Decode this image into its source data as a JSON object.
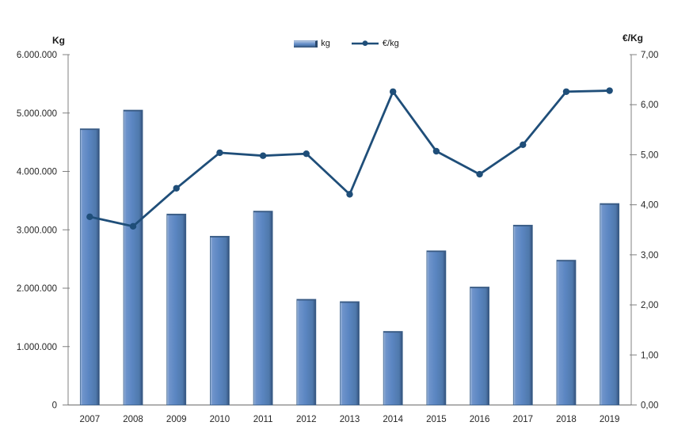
{
  "legend": {
    "bar_label": "kg",
    "line_label": "€/kg"
  },
  "chart_data": {
    "type": "combo bar+line",
    "categories": [
      "2007",
      "2008",
      "2009",
      "2010",
      "2011",
      "2012",
      "2013",
      "2014",
      "2015",
      "2016",
      "2017",
      "2018",
      "2019"
    ],
    "series": [
      {
        "name": "kg",
        "type": "bar",
        "axis": "left",
        "color": "#5b86c2",
        "values": [
          4730000,
          5050000,
          3270000,
          2890000,
          3320000,
          1810000,
          1770000,
          1260000,
          2640000,
          2020000,
          3080000,
          2480000,
          3450000
        ]
      },
      {
        "name": "€/kg",
        "type": "line",
        "axis": "right",
        "color": "#1f4e79",
        "values": [
          3.76,
          3.57,
          4.33,
          5.04,
          4.98,
          5.02,
          4.21,
          6.26,
          5.07,
          4.61,
          5.2,
          6.26,
          6.28
        ]
      }
    ],
    "left_axis": {
      "label": "Kg",
      "min": 0,
      "max": 6000000,
      "step": 1000000,
      "tick_labels": [
        "0",
        "1.000.000",
        "2.000.000",
        "3.000.000",
        "4.000.000",
        "5.000.000",
        "6.000.000"
      ]
    },
    "right_axis": {
      "label": "€/Kg",
      "min": 0,
      "max": 7,
      "step": 1,
      "tick_labels": [
        "0,00",
        "1,00",
        "2,00",
        "3,00",
        "4,00",
        "5,00",
        "6,00",
        "7,00"
      ]
    },
    "legend_position": "top",
    "grid": false
  },
  "colors": {
    "bar_main": "#5b86c2",
    "bar_light": "#a7bedd",
    "bar_dark": "#2c4a6e",
    "bar_edge": "#3f6590",
    "line": "#1f4e79",
    "axis_line": "#808080",
    "text": "#262626"
  }
}
